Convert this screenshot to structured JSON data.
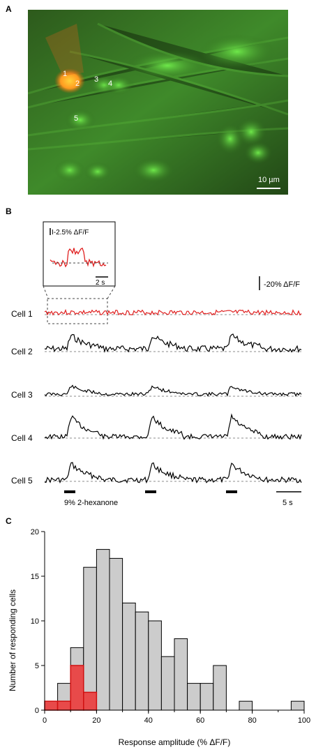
{
  "panelA": {
    "letter": "A",
    "cell_numbers": [
      "1",
      "2",
      "3",
      "4",
      "5"
    ],
    "scalebar": "10 µm"
  },
  "panelB": {
    "letter": "B",
    "inset_scale": "I-2.5% ΔF/F",
    "inset_time": "2 s",
    "vertical_scale": "-20% ΔF/F",
    "cells": [
      "Cell 1",
      "Cell 2",
      "Cell 3",
      "Cell 4",
      "Cell 5"
    ],
    "stimulus": "9% 2-hexanone",
    "time_scale": "5 s",
    "colors": {
      "cell1": "#e02020",
      "other": "#000000"
    }
  },
  "panelC": {
    "letter": "C"
  },
  "chart_data": {
    "type": "bar",
    "xlabel": "Response amplitude (% ΔF/F)",
    "ylabel": "Number of responding cells",
    "xlim": [
      0,
      100
    ],
    "ylim": [
      0,
      20
    ],
    "xticks": [
      "0",
      "20",
      "40",
      "60",
      "80",
      "100"
    ],
    "yticks": [
      "0",
      "5",
      "10",
      "15",
      "20"
    ],
    "bin_width": 5,
    "series": [
      {
        "color": "#cccccc",
        "bins": [
          0,
          5,
          10,
          15,
          20,
          25,
          30,
          35,
          40,
          45,
          50,
          55,
          60,
          65,
          70,
          75,
          80,
          85,
          90,
          95
        ],
        "values": [
          0,
          3,
          7,
          16,
          18,
          17,
          12,
          11,
          10,
          6,
          8,
          3,
          3,
          5,
          0,
          1,
          0,
          0,
          0,
          1
        ]
      },
      {
        "color": "#e84a4a",
        "bins": [
          0,
          5,
          10,
          15
        ],
        "values": [
          1,
          1,
          5,
          2
        ]
      }
    ]
  }
}
